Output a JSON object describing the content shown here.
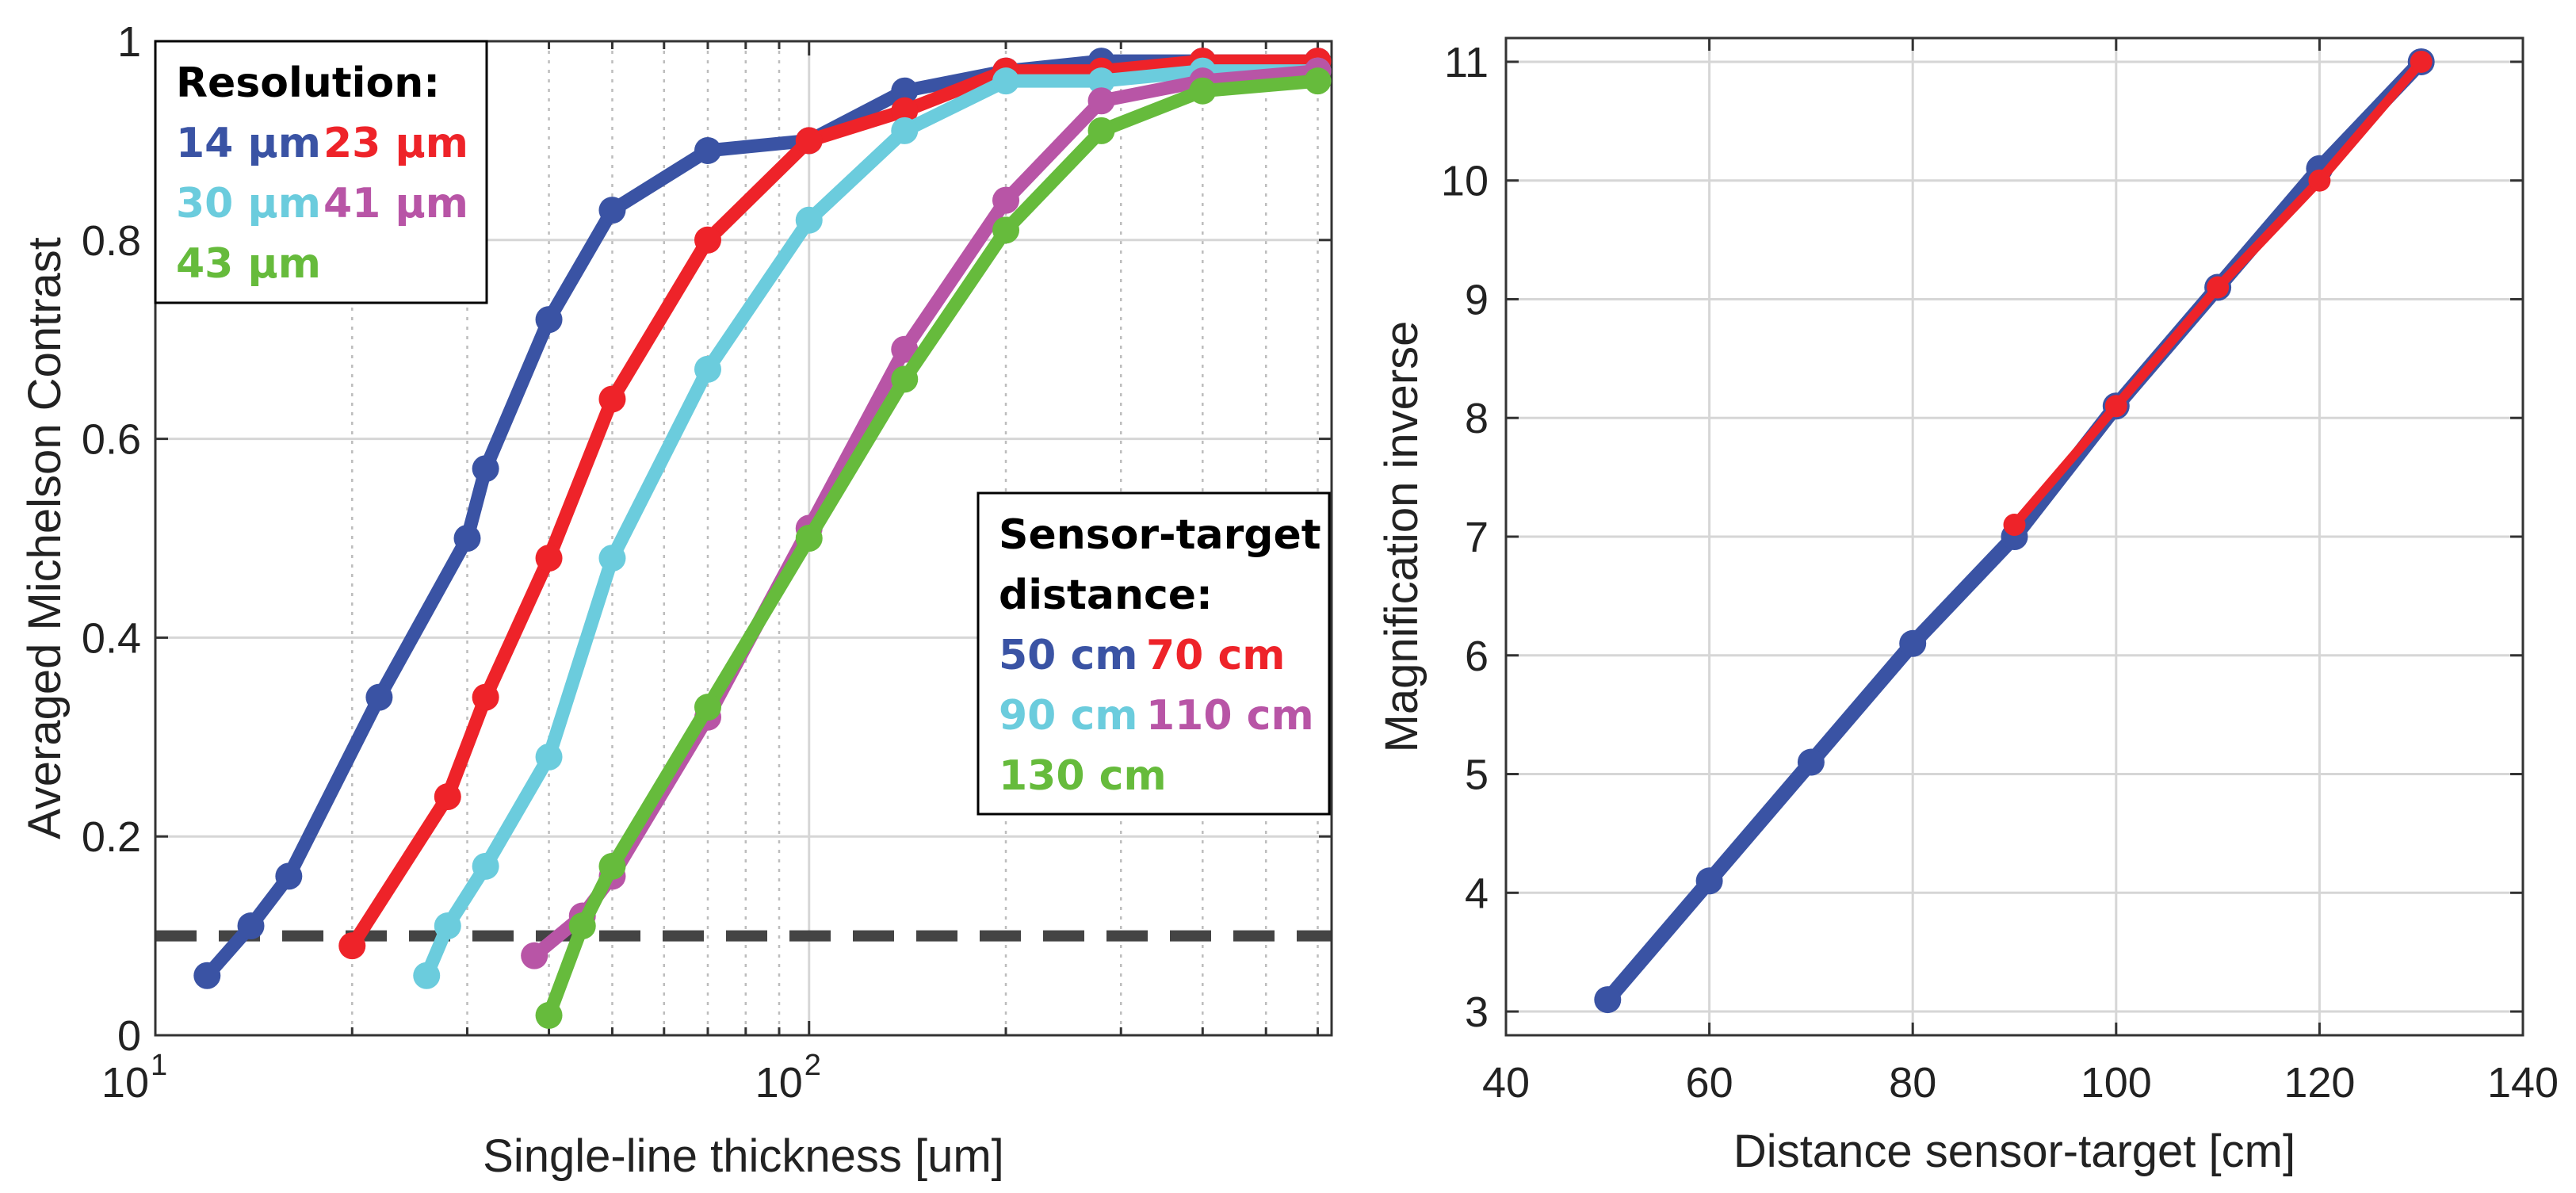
{
  "chart_data": [
    {
      "type": "line",
      "xscale": "log",
      "xlabel": "Single-line thickness [um]",
      "ylabel": "Averaged Michelson Contrast",
      "xlim": [
        10,
        630
      ],
      "ylim": [
        0,
        1
      ],
      "x_ticks": [
        {
          "value": 10,
          "base": "10",
          "exp": "1"
        },
        {
          "value": 100,
          "base": "10",
          "exp": "2"
        }
      ],
      "y_ticks": [
        {
          "value": 0,
          "label": "0"
        },
        {
          "value": 0.2,
          "label": "0.2"
        },
        {
          "value": 0.4,
          "label": "0.4"
        },
        {
          "value": 0.6,
          "label": "0.6"
        },
        {
          "value": 0.8,
          "label": "0.8"
        },
        {
          "value": 1,
          "label": "1"
        }
      ],
      "threshold": {
        "value": 0.1,
        "color": "#444444"
      },
      "legends": [
        {
          "title": "Resolution:",
          "position": "top-left",
          "rows": [
            [
              {
                "label": "14 µm",
                "color": "#3A53A4"
              },
              {
                "label": "23 µm",
                "color": "#EE2329"
              }
            ],
            [
              {
                "label": "30 µm",
                "color": "#6BCCDD"
              },
              {
                "label": "41 µm",
                "color": "#B855A6"
              }
            ],
            [
              {
                "label": "43 µm",
                "color": "#66BB3C"
              }
            ]
          ]
        },
        {
          "title": "Sensor-target",
          "title2": "distance:",
          "position": "center-right",
          "rows": [
            [
              {
                "label": "50 cm",
                "color": "#3A53A4"
              },
              {
                "label": "70 cm",
                "color": "#EE2329"
              }
            ],
            [
              {
                "label": "90 cm",
                "color": "#6BCCDD"
              },
              {
                "label": "110 cm",
                "color": "#B855A6"
              }
            ],
            [
              {
                "label": "130 cm",
                "color": "#66BB3C"
              }
            ]
          ]
        }
      ],
      "series": [
        {
          "name": "50 cm / 14 µm",
          "color": "#3A53A4",
          "x": [
            12,
            14,
            16,
            22,
            30,
            32,
            40,
            50,
            70,
            100,
            140,
            200,
            280,
            400,
            600
          ],
          "y": [
            0.06,
            0.11,
            0.16,
            0.34,
            0.5,
            0.57,
            0.72,
            0.83,
            0.89,
            0.9,
            0.95,
            0.97,
            0.98,
            0.98,
            0.98
          ]
        },
        {
          "name": "70 cm / 23 µm",
          "color": "#EE2329",
          "x": [
            20,
            28,
            32,
            40,
            50,
            70,
            100,
            140,
            200,
            280,
            400,
            600
          ],
          "y": [
            0.09,
            0.24,
            0.34,
            0.48,
            0.64,
            0.8,
            0.9,
            0.93,
            0.97,
            0.97,
            0.98,
            0.98
          ]
        },
        {
          "name": "90 cm / 30 µm",
          "color": "#6BCCDD",
          "x": [
            26,
            28,
            32,
            40,
            50,
            70,
            100,
            140,
            200,
            280,
            400,
            600
          ],
          "y": [
            0.06,
            0.11,
            0.17,
            0.28,
            0.48,
            0.67,
            0.82,
            0.91,
            0.96,
            0.96,
            0.97,
            0.97
          ]
        },
        {
          "name": "110 cm / 41 µm",
          "color": "#B855A6",
          "x": [
            38,
            45,
            50,
            70,
            100,
            140,
            200,
            280,
            400,
            600
          ],
          "y": [
            0.08,
            0.12,
            0.16,
            0.32,
            0.51,
            0.69,
            0.84,
            0.94,
            0.96,
            0.97
          ]
        },
        {
          "name": "130 cm / 43 µm",
          "color": "#66BB3C",
          "x": [
            40,
            45,
            50,
            70,
            100,
            140,
            200,
            280,
            400,
            600
          ],
          "y": [
            0.02,
            0.11,
            0.17,
            0.33,
            0.5,
            0.66,
            0.81,
            0.91,
            0.95,
            0.96
          ]
        }
      ]
    },
    {
      "type": "line",
      "xlabel": "Distance sensor-target [cm]",
      "ylabel": "Magnification inverse",
      "xlim": [
        40,
        140
      ],
      "ylim": [
        2.8,
        11.2
      ],
      "x_ticks": [
        {
          "value": 40,
          "label": "40"
        },
        {
          "value": 60,
          "label": "60"
        },
        {
          "value": 80,
          "label": "80"
        },
        {
          "value": 100,
          "label": "100"
        },
        {
          "value": 120,
          "label": "120"
        },
        {
          "value": 140,
          "label": "140"
        }
      ],
      "y_ticks": [
        {
          "value": 3,
          "label": "3"
        },
        {
          "value": 4,
          "label": "4"
        },
        {
          "value": 5,
          "label": "5"
        },
        {
          "value": 6,
          "label": "6"
        },
        {
          "value": 7,
          "label": "7"
        },
        {
          "value": 8,
          "label": "8"
        },
        {
          "value": 9,
          "label": "9"
        },
        {
          "value": 10,
          "label": "10"
        },
        {
          "value": 11,
          "label": "11"
        }
      ],
      "grid": true,
      "series": [
        {
          "name": "blue",
          "color": "#3A53A4",
          "x": [
            50,
            60,
            70,
            80,
            90,
            100,
            110,
            120,
            130
          ],
          "y": [
            3.1,
            4.1,
            5.1,
            6.1,
            7.0,
            8.1,
            9.1,
            10.1,
            11.0
          ]
        },
        {
          "name": "red",
          "color": "#EE2329",
          "x": [
            90,
            100,
            110,
            120,
            130
          ],
          "y": [
            7.1,
            8.1,
            9.1,
            10.0,
            11.0
          ]
        }
      ]
    }
  ]
}
